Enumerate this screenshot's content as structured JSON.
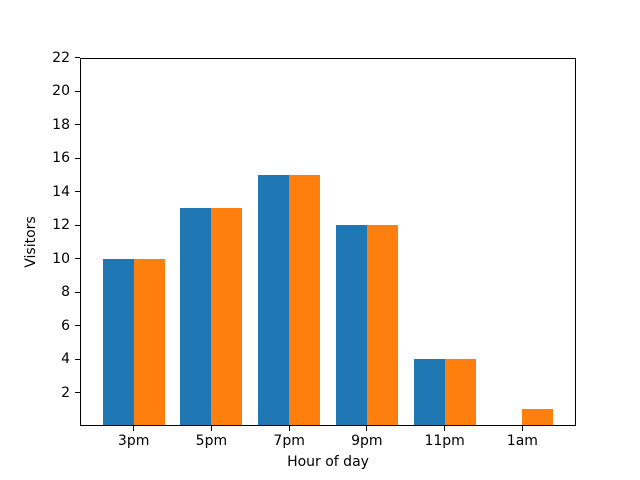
{
  "chart_data": {
    "type": "bar",
    "title": "",
    "xlabel": "Hour of day",
    "ylabel": "Visitors",
    "categories": [
      "3pm",
      "5pm",
      "7pm",
      "9pm",
      "11pm",
      "1am"
    ],
    "series": [
      {
        "name": "blue",
        "color": "#1f77b4",
        "values": [
          10,
          13,
          15,
          12,
          4,
          0
        ]
      },
      {
        "name": "orange",
        "color": "#ff7f0e",
        "values": [
          10,
          13,
          15,
          12,
          4,
          1
        ]
      }
    ],
    "ylim": [
      0,
      22
    ],
    "yticks": [
      2,
      4,
      6,
      8,
      10,
      12,
      14,
      16,
      18,
      20,
      22
    ],
    "xlim": [
      -0.69,
      5.69
    ],
    "bar_width": 0.4,
    "grid": false,
    "legend": "none",
    "axis_color": "#000000",
    "background_color": "#ffffff"
  }
}
